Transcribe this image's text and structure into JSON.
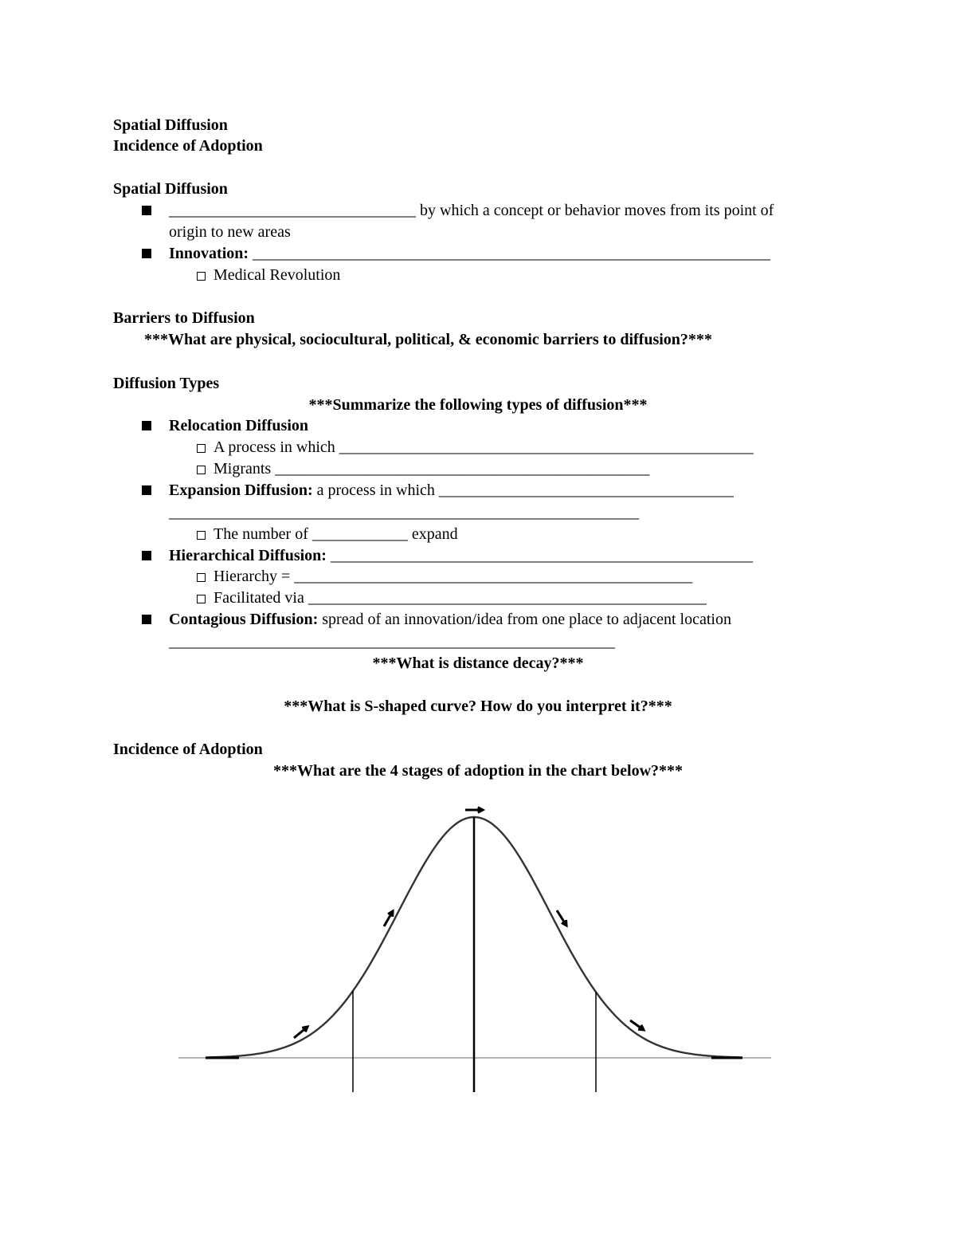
{
  "header": {
    "title1": "Spatial Diffusion",
    "title2": "Incidence of Adoption"
  },
  "spatial": {
    "heading": "Spatial Diffusion",
    "item1_blank": "_______________________________",
    "item1_text": " by which a concept or behavior moves from its point of",
    "item1_cont": "origin to new areas",
    "innovation_label": "Innovation:",
    "innovation_blank": " _________________________________________________________________",
    "sub1": "Medical Revolution"
  },
  "barriers": {
    "heading": "Barriers to Diffusion",
    "question": "***What are physical, sociocultural, political, & economic barriers to diffusion?***"
  },
  "types": {
    "heading": "Diffusion Types",
    "prompt": "***Summarize the following types of diffusion***",
    "relocation": "Relocation Diffusion",
    "reloc_sub1": "A process in which ____________________________________________________",
    "reloc_sub2": "Migrants _______________________________________________",
    "expansion_label": "Expansion Diffusion:",
    "expansion_text": "  a process in which _____________________________________",
    "expansion_cont": "___________________________________________________________",
    "exp_sub1": "The number of ____________ expand",
    "hier_label": "Hierarchical Diffusion:",
    "hier_blank": " _____________________________________________________",
    "hier_sub1": "Hierarchy = __________________________________________________",
    "hier_sub2": "Facilitated via __________________________________________________",
    "contagious_label": "Contagious Diffusion:",
    "contagious_text": " spread of an innovation/idea from one place to adjacent location",
    "contagious_cont": "________________________________________________________",
    "distance_q": "***What is distance decay?***",
    "scurve_q": "***What is S-shaped curve? How do you interpret it?***"
  },
  "adoption": {
    "heading": "Incidence of Adoption",
    "question": "***What are the 4 stages of adoption in the chart below?***"
  },
  "diagram": {
    "type": "bell-curve",
    "stage_dividers": 4,
    "arrow_icons": [
      "arrow-up-right-icon",
      "arrow-up-right-icon",
      "arrow-right-icon",
      "arrow-down-right-icon",
      "arrow-down-right-icon"
    ]
  }
}
